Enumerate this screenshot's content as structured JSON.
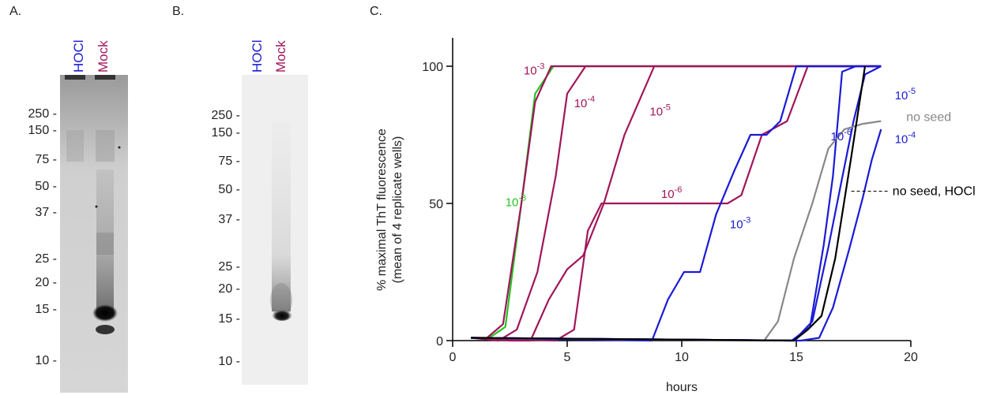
{
  "panels": {
    "a": "A.",
    "b": "B.",
    "c": "C."
  },
  "gels": {
    "lanes": [
      "HOCl",
      "Mock"
    ],
    "lane_colors": [
      "#1a1ad6",
      "#a0165a"
    ],
    "markers_a": [
      "250 -",
      "150 -",
      "75 -",
      "50 -",
      "37 -",
      "25 -",
      "20 -",
      "15 -",
      "10 -"
    ],
    "markers_b": [
      "250 -",
      "150 -",
      "75 -",
      "50 -",
      "37 -",
      "25 -",
      "20 -",
      "15 -",
      "10 -"
    ],
    "marker_values": [
      250,
      150,
      75,
      50,
      37,
      25,
      20,
      15,
      10
    ]
  },
  "chart_data": {
    "type": "line",
    "title": "",
    "xlabel": "hours",
    "ylabel": "% maximal ThT fluorescence",
    "ylabel2": "(mean of 4 replicate wells)",
    "xlim": [
      0,
      20
    ],
    "ylim": [
      0,
      100
    ],
    "xticks": [
      0,
      5,
      10,
      15,
      20
    ],
    "yticks": [
      0,
      50,
      100
    ],
    "grid": false,
    "series": [
      {
        "color": "#22c422",
        "x": [
          0.8,
          1.6,
          2.3,
          3.0,
          3.6,
          4.4,
          18.7
        ],
        "y": [
          1,
          1,
          5,
          50,
          90,
          100,
          100
        ]
      },
      {
        "color": "#a0165a",
        "x": [
          0.8,
          1.5,
          2.2,
          3.0,
          3.6,
          4.3,
          18.7
        ],
        "y": [
          1,
          1,
          6,
          50,
          87,
          100,
          100
        ]
      },
      {
        "color": "#a0165a",
        "x": [
          0.8,
          2.0,
          2.8,
          3.7,
          4.5,
          5.0,
          5.8,
          18.7
        ],
        "y": [
          1,
          0,
          4,
          25,
          60,
          90,
          100,
          100
        ]
      },
      {
        "color": "#a0165a",
        "x": [
          0.8,
          2.5,
          3.4,
          4.2,
          5.0,
          5.7,
          6.6,
          7.5,
          8.8,
          18.7
        ],
        "y": [
          1,
          0,
          0,
          15,
          26,
          31,
          50,
          75,
          100,
          100
        ]
      },
      {
        "color": "#a0165a",
        "x": [
          0.8,
          4.5,
          5.3,
          5.9,
          6.5,
          7.5,
          12.0,
          12.6,
          13.5,
          14.6,
          15.5,
          16.3,
          18.7
        ],
        "y": [
          1,
          0,
          4,
          40,
          50,
          50,
          50,
          53,
          75,
          80,
          100,
          100,
          100
        ]
      },
      {
        "color": "#1a1ad6",
        "x": [
          0.8,
          8.7,
          9.4,
          10.1,
          10.8,
          11.5,
          12.3,
          13.0,
          13.7,
          14.3,
          15.0,
          18.7
        ],
        "y": [
          1,
          0,
          15,
          25,
          25,
          46,
          62,
          75,
          75,
          80,
          100,
          100
        ]
      },
      {
        "color": "#1a1ad6",
        "x": [
          0.8,
          14.8,
          15.6,
          16.2,
          16.6,
          17.0,
          17.6,
          18.7
        ],
        "y": [
          1,
          0,
          5,
          35,
          60,
          98,
          100,
          100
        ]
      },
      {
        "color": "#1a1ad6",
        "x": [
          0.8,
          14.9,
          15.7,
          16.4,
          16.9,
          17.5,
          18.0,
          18.7
        ],
        "y": [
          1,
          0,
          7,
          34,
          55,
          80,
          97,
          100
        ]
      },
      {
        "color": "#1a1ad6",
        "x": [
          0.8,
          15.2,
          16.0,
          16.6,
          17.3,
          17.9,
          18.3,
          18.7
        ],
        "y": [
          1,
          0,
          1,
          12,
          33,
          52,
          66,
          77
        ]
      },
      {
        "color": "#888888",
        "x": [
          0.8,
          13.6,
          14.2,
          14.9,
          15.7,
          16.4,
          17.1,
          17.9,
          18.7
        ],
        "y": [
          1,
          0,
          7,
          30,
          50,
          70,
          77,
          79,
          80
        ]
      },
      {
        "color": "#000000",
        "x": [
          0.8,
          14.9,
          15.5,
          16.1,
          16.7,
          17.4,
          18.0
        ],
        "y": [
          1,
          0,
          4,
          9,
          30,
          67,
          100
        ]
      }
    ],
    "annotations": [
      {
        "base": "10",
        "exp": "-3",
        "color": "#a0165a",
        "x": 3.1,
        "y": 97
      },
      {
        "base": "10",
        "exp": "-4",
        "color": "#a0165a",
        "x": 5.3,
        "y": 85
      },
      {
        "base": "10",
        "exp": "-5",
        "color": "#a0165a",
        "x": 8.6,
        "y": 82
      },
      {
        "base": "10",
        "exp": "-6",
        "color": "#a0165a",
        "x": 9.1,
        "y": 52
      },
      {
        "base": "10",
        "exp": "-3",
        "color": "#22c422",
        "x": 2.3,
        "y": 49
      },
      {
        "base": "10",
        "exp": "-3",
        "color": "#1a1ad6",
        "x": 12.1,
        "y": 41
      },
      {
        "base": "10",
        "exp": "-6",
        "color": "#1a1ad6",
        "x": 16.5,
        "y": 73
      },
      {
        "base": "10",
        "exp": "-5",
        "color": "#1a1ad6",
        "x": 19.3,
        "y": 88
      },
      {
        "base": "10",
        "exp": "-4",
        "color": "#1a1ad6",
        "x": 19.3,
        "y": 72
      },
      {
        "text": "no seed",
        "color": "#888888",
        "x": 19.8,
        "y": 80
      },
      {
        "text": "no seed, HOCl",
        "color": "#000000",
        "x": 19.2,
        "y": 53
      }
    ]
  }
}
